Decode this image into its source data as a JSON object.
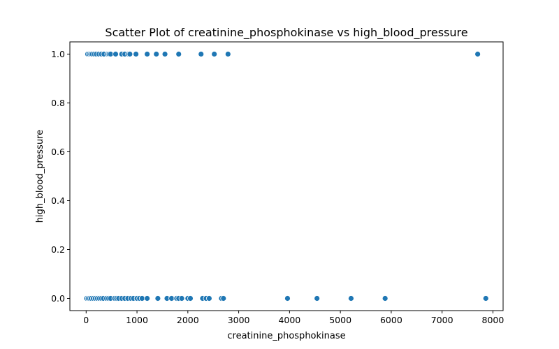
{
  "chart_data": {
    "type": "scatter",
    "title": "Scatter Plot of creatinine_phosphokinase vs high_blood_pressure",
    "xlabel": "creatinine_phosphokinase",
    "ylabel": "high_blood_pressure",
    "xlim": [
      -320,
      8200
    ],
    "ylim": [
      -0.05,
      1.05
    ],
    "xticks": [
      0,
      1000,
      2000,
      3000,
      4000,
      5000,
      6000,
      7000,
      8000
    ],
    "xtick_labels": [
      "0",
      "1000",
      "2000",
      "3000",
      "4000",
      "5000",
      "6000",
      "7000",
      "8000"
    ],
    "yticks": [
      0.0,
      0.2,
      0.4,
      0.6,
      0.8,
      1.0
    ],
    "ytick_labels": [
      "0.0",
      "0.2",
      "0.4",
      "0.6",
      "0.8",
      "1.0"
    ],
    "grid": false,
    "marker_color": "#1f77b4",
    "points": [
      {
        "x": 30,
        "y": 1
      },
      {
        "x": 60,
        "y": 1
      },
      {
        "x": 90,
        "y": 1
      },
      {
        "x": 120,
        "y": 1
      },
      {
        "x": 160,
        "y": 1
      },
      {
        "x": 200,
        "y": 1
      },
      {
        "x": 250,
        "y": 1
      },
      {
        "x": 300,
        "y": 1
      },
      {
        "x": 350,
        "y": 1
      },
      {
        "x": 420,
        "y": 1
      },
      {
        "x": 450,
        "y": 1
      },
      {
        "x": 480,
        "y": 1
      },
      {
        "x": 580,
        "y": 1
      },
      {
        "x": 700,
        "y": 1
      },
      {
        "x": 760,
        "y": 1
      },
      {
        "x": 830,
        "y": 1
      },
      {
        "x": 860,
        "y": 1
      },
      {
        "x": 980,
        "y": 1
      },
      {
        "x": 1200,
        "y": 1
      },
      {
        "x": 1380,
        "y": 1
      },
      {
        "x": 1550,
        "y": 1
      },
      {
        "x": 1820,
        "y": 1
      },
      {
        "x": 2260,
        "y": 1
      },
      {
        "x": 2520,
        "y": 1
      },
      {
        "x": 2790,
        "y": 1
      },
      {
        "x": 7700,
        "y": 1
      },
      {
        "x": 10,
        "y": 0
      },
      {
        "x": 40,
        "y": 0
      },
      {
        "x": 70,
        "y": 0
      },
      {
        "x": 100,
        "y": 0
      },
      {
        "x": 140,
        "y": 0
      },
      {
        "x": 180,
        "y": 0
      },
      {
        "x": 220,
        "y": 0
      },
      {
        "x": 260,
        "y": 0
      },
      {
        "x": 300,
        "y": 0
      },
      {
        "x": 340,
        "y": 0
      },
      {
        "x": 400,
        "y": 0
      },
      {
        "x": 440,
        "y": 0
      },
      {
        "x": 480,
        "y": 0
      },
      {
        "x": 560,
        "y": 0
      },
      {
        "x": 600,
        "y": 0
      },
      {
        "x": 640,
        "y": 0
      },
      {
        "x": 700,
        "y": 0
      },
      {
        "x": 760,
        "y": 0
      },
      {
        "x": 820,
        "y": 0
      },
      {
        "x": 880,
        "y": 0
      },
      {
        "x": 930,
        "y": 0
      },
      {
        "x": 1000,
        "y": 0
      },
      {
        "x": 1050,
        "y": 0
      },
      {
        "x": 1100,
        "y": 0
      },
      {
        "x": 1200,
        "y": 0
      },
      {
        "x": 1410,
        "y": 0
      },
      {
        "x": 1590,
        "y": 0
      },
      {
        "x": 1680,
        "y": 0
      },
      {
        "x": 1780,
        "y": 0
      },
      {
        "x": 1820,
        "y": 0
      },
      {
        "x": 1880,
        "y": 0
      },
      {
        "x": 2000,
        "y": 0
      },
      {
        "x": 2050,
        "y": 0
      },
      {
        "x": 2290,
        "y": 0
      },
      {
        "x": 2360,
        "y": 0
      },
      {
        "x": 2420,
        "y": 0
      },
      {
        "x": 2660,
        "y": 0
      },
      {
        "x": 2700,
        "y": 0
      },
      {
        "x": 3960,
        "y": 0
      },
      {
        "x": 4540,
        "y": 0
      },
      {
        "x": 5210,
        "y": 0
      },
      {
        "x": 5880,
        "y": 0
      },
      {
        "x": 7860,
        "y": 0
      }
    ]
  }
}
